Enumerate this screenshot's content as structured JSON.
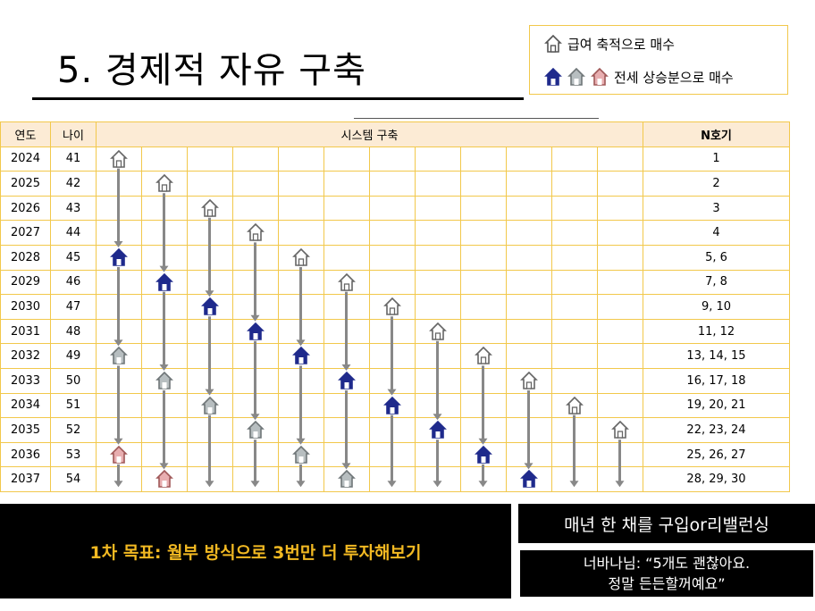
{
  "title": "5. 경제적 자유 구축",
  "legend": {
    "row1_label": "급여 축적으로 매수",
    "row2_label": "전세 상승분으로 매수",
    "row1_icon": "house-outline-icon",
    "row2_icons": [
      "house-blue-icon",
      "house-gray-icon",
      "house-pink-icon"
    ]
  },
  "table": {
    "header_year": "연도",
    "header_age": "나이",
    "header_system": "시스템 구축",
    "header_n": "N호기",
    "rows": [
      {
        "year": "2024",
        "age": "41",
        "n": "1"
      },
      {
        "year": "2025",
        "age": "42",
        "n": "2"
      },
      {
        "year": "2026",
        "age": "43",
        "n": "3"
      },
      {
        "year": "2027",
        "age": "44",
        "n": "4"
      },
      {
        "year": "2028",
        "age": "45",
        "n": "5, 6"
      },
      {
        "year": "2029",
        "age": "46",
        "n": "7, 8"
      },
      {
        "year": "2030",
        "age": "47",
        "n": "9, 10"
      },
      {
        "year": "2031",
        "age": "48",
        "n": "11, 12"
      },
      {
        "year": "2032",
        "age": "49",
        "n": "13, 14, 15"
      },
      {
        "year": "2033",
        "age": "50",
        "n": "16, 17, 18"
      },
      {
        "year": "2034",
        "age": "51",
        "n": "19, 20, 21"
      },
      {
        "year": "2035",
        "age": "52",
        "n": "22, 23, 24"
      },
      {
        "year": "2036",
        "age": "53",
        "n": "25, 26, 27"
      },
      {
        "year": "2037",
        "age": "54",
        "n": "28, 29, 30"
      }
    ],
    "colors": {
      "outline": "#7a7a7a",
      "blue": "#1f2a8c",
      "gray": "#8e9598",
      "pink": "#d88a8c",
      "border": "#f2c84b",
      "header_bg": "#fcebd5"
    }
  },
  "goal_text": "1차 목표: 월부 방식으로 3번만 더 투자해보기",
  "box1_text": "매년 한 채를 구입or리밸런싱",
  "box2_line1": "너바나님: “5개도 괜찮아요.",
  "box2_line2": "정말 든든할꺼예요”"
}
